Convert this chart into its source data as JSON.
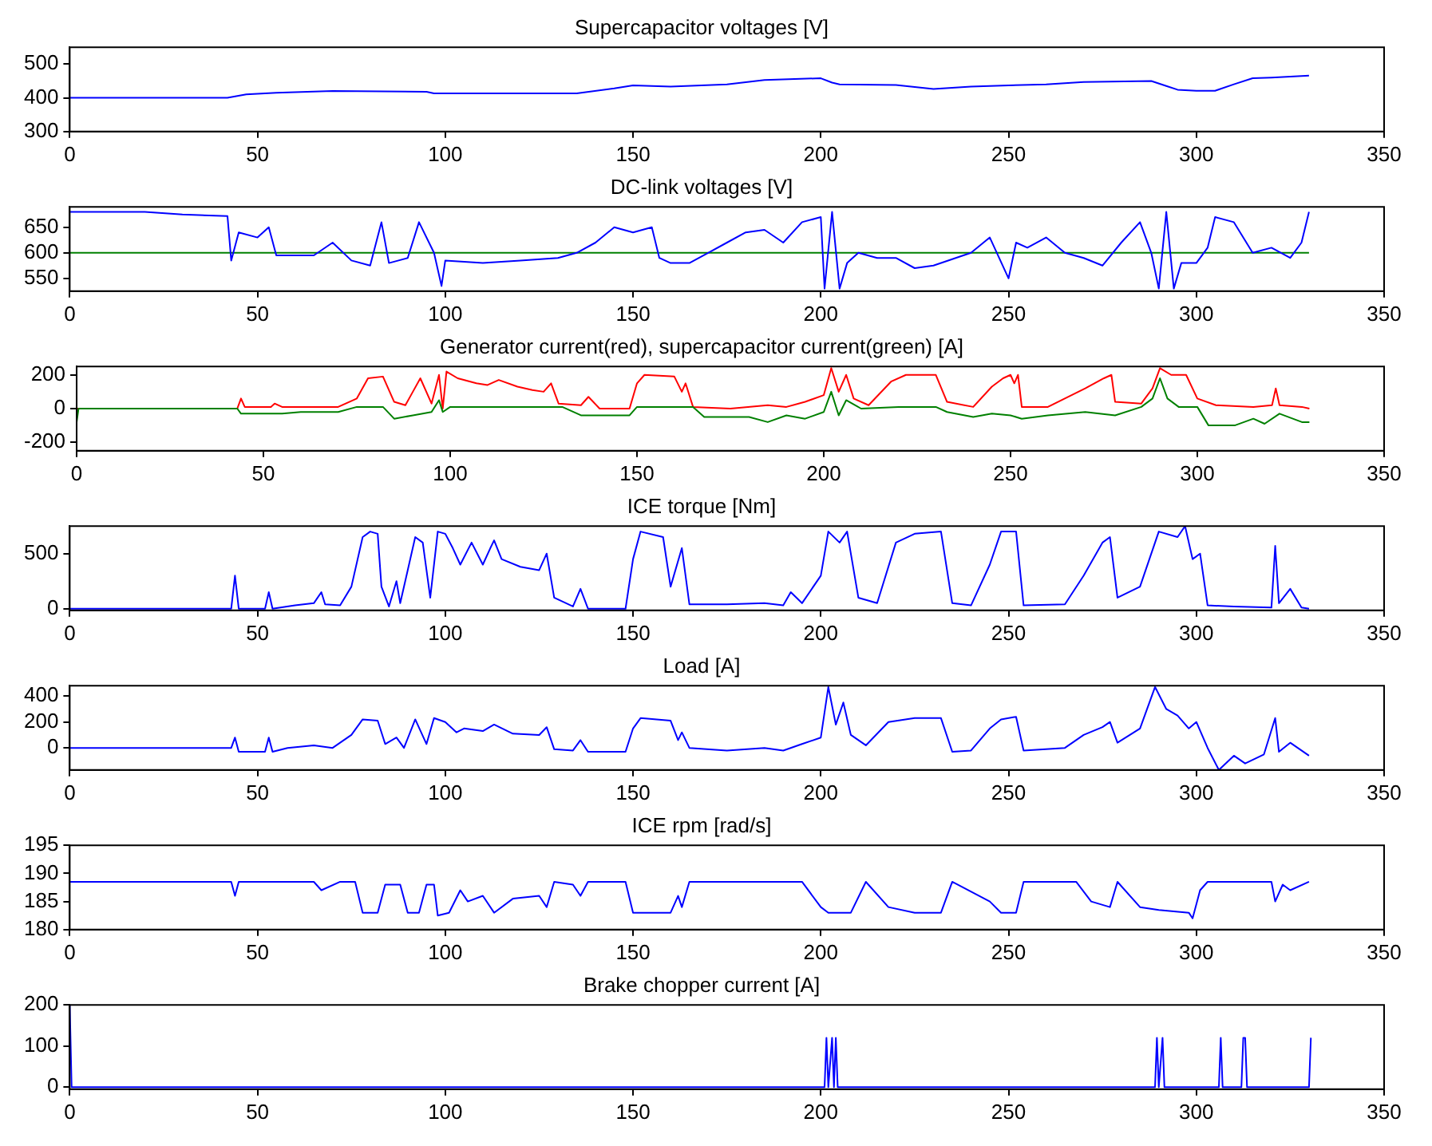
{
  "chart_data": [
    {
      "type": "line",
      "title": "Supercapacitor voltages [V]",
      "xlim": [
        0,
        350
      ],
      "xticks": [
        0,
        50,
        100,
        150,
        200,
        250,
        300,
        350
      ],
      "ylim": [
        300,
        550
      ],
      "yticks": [
        300,
        400,
        500
      ],
      "series": [
        {
          "color": "#0000ff",
          "x": [
            0,
            42,
            47,
            55,
            70,
            95,
            97,
            135,
            145,
            150,
            160,
            175,
            185,
            200,
            203,
            205,
            220,
            230,
            240,
            250,
            260,
            270,
            288,
            292,
            295,
            300,
            305,
            310,
            315,
            320,
            330
          ],
          "values": [
            400,
            400,
            410,
            415,
            420,
            418,
            413,
            413,
            428,
            437,
            433,
            440,
            453,
            458,
            445,
            440,
            438,
            426,
            433,
            437,
            440,
            447,
            450,
            435,
            424,
            421,
            421,
            440,
            458,
            460,
            466
          ]
        }
      ]
    },
    {
      "type": "line",
      "title": "DC-link voltages [V]",
      "xlim": [
        0,
        350
      ],
      "xticks": [
        0,
        50,
        100,
        150,
        200,
        250,
        300,
        350
      ],
      "ylim": [
        525,
        690
      ],
      "yticks": [
        550,
        600,
        650
      ],
      "series": [
        {
          "color": "#0000ff",
          "x": [
            0,
            20,
            30,
            42,
            43,
            45,
            50,
            53,
            55,
            65,
            70,
            75,
            80,
            83,
            85,
            90,
            93,
            97,
            99,
            100,
            110,
            120,
            130,
            135,
            140,
            145,
            150,
            155,
            157,
            160,
            165,
            170,
            175,
            180,
            185,
            190,
            195,
            200,
            201,
            203,
            205,
            207,
            210,
            215,
            220,
            225,
            230,
            240,
            245,
            250,
            252,
            255,
            260,
            265,
            270,
            275,
            280,
            285,
            288,
            290,
            292,
            294,
            296,
            300,
            303,
            305,
            310,
            315,
            320,
            325,
            328,
            330
          ],
          "values": [
            680,
            680,
            675,
            672,
            585,
            640,
            630,
            650,
            595,
            595,
            620,
            585,
            575,
            660,
            580,
            590,
            660,
            600,
            535,
            585,
            580,
            585,
            590,
            600,
            620,
            650,
            640,
            650,
            590,
            580,
            580,
            600,
            620,
            640,
            645,
            620,
            660,
            670,
            530,
            680,
            530,
            580,
            600,
            590,
            590,
            570,
            575,
            600,
            630,
            550,
            620,
            610,
            630,
            600,
            590,
            575,
            620,
            660,
            600,
            530,
            680,
            530,
            580,
            580,
            610,
            670,
            660,
            600,
            610,
            590,
            620,
            680
          ]
        },
        {
          "color": "#008000",
          "x": [
            0,
            330
          ],
          "values": [
            600,
            600
          ]
        }
      ]
    },
    {
      "type": "line",
      "title": "Generator current(red), supercapacitor current(green) [A]",
      "xlim": [
        0,
        350
      ],
      "xticks": [
        0,
        50,
        100,
        150,
        200,
        250,
        300,
        350
      ],
      "ylim": [
        -250,
        250
      ],
      "yticks": [
        -200,
        0,
        200
      ],
      "series": [
        {
          "color": "#008000",
          "x": [
            0,
            0.5,
            43,
            44,
            55,
            60,
            70,
            75,
            82,
            85,
            90,
            95,
            97,
            98,
            100,
            130,
            135,
            140,
            148,
            150,
            165,
            168,
            180,
            185,
            190,
            195,
            200,
            202,
            204,
            206,
            210,
            220,
            230,
            233,
            240,
            245,
            250,
            253,
            260,
            270,
            278,
            285,
            288,
            290,
            292,
            295,
            300,
            303,
            310,
            315,
            318,
            322,
            328,
            330
          ],
          "values": [
            -80,
            0,
            0,
            -30,
            -30,
            -20,
            -20,
            10,
            10,
            -60,
            -40,
            -20,
            50,
            -20,
            10,
            10,
            -40,
            -40,
            -40,
            10,
            10,
            -50,
            -50,
            -80,
            -40,
            -60,
            -20,
            100,
            -40,
            50,
            0,
            10,
            10,
            -20,
            -50,
            -30,
            -40,
            -60,
            -40,
            -20,
            -40,
            10,
            60,
            180,
            60,
            10,
            10,
            -100,
            -100,
            -60,
            -90,
            -30,
            -80,
            -80
          ]
        },
        {
          "color": "#ff0000",
          "x": [
            0,
            43,
            44,
            45,
            52,
            53,
            55,
            60,
            70,
            75,
            78,
            82,
            85,
            88,
            90,
            92,
            95,
            97,
            98,
            99,
            102,
            107,
            110,
            113,
            118,
            122,
            125,
            127,
            129,
            135,
            137,
            140,
            148,
            150,
            152,
            160,
            162,
            163,
            165,
            175,
            185,
            190,
            195,
            200,
            202,
            204,
            206,
            208,
            212,
            218,
            222,
            230,
            233,
            240,
            245,
            248,
            250,
            251,
            252,
            253,
            260,
            270,
            275,
            277,
            278,
            285,
            288,
            290,
            293,
            297,
            300,
            305,
            315,
            320,
            321,
            322,
            328,
            330
          ],
          "values": [
            0,
            0,
            60,
            10,
            10,
            30,
            10,
            10,
            10,
            60,
            180,
            190,
            40,
            20,
            100,
            180,
            30,
            200,
            0,
            220,
            180,
            150,
            140,
            170,
            130,
            110,
            100,
            150,
            30,
            20,
            70,
            0,
            0,
            150,
            200,
            190,
            100,
            150,
            10,
            0,
            20,
            10,
            40,
            80,
            240,
            100,
            200,
            60,
            20,
            160,
            200,
            200,
            40,
            10,
            130,
            180,
            200,
            150,
            200,
            10,
            10,
            120,
            180,
            200,
            40,
            30,
            120,
            240,
            200,
            200,
            60,
            20,
            10,
            20,
            120,
            20,
            10,
            0
          ]
        }
      ]
    },
    {
      "type": "line",
      "title": "ICE torque [Nm]",
      "xlim": [
        0,
        350
      ],
      "xticks": [
        0,
        50,
        100,
        150,
        200,
        250,
        300,
        350
      ],
      "ylim": [
        -15,
        750
      ],
      "yticks": [
        0,
        500
      ],
      "series": [
        {
          "color": "#0000ff",
          "x": [
            0,
            43,
            44,
            45,
            52,
            53,
            54,
            60,
            65,
            67,
            68,
            72,
            75,
            78,
            80,
            82,
            83,
            85,
            87,
            88,
            90,
            92,
            94,
            96,
            98,
            100,
            102,
            104,
            107,
            110,
            112,
            113,
            115,
            120,
            125,
            127,
            129,
            134,
            136,
            138,
            148,
            150,
            152,
            158,
            160,
            163,
            165,
            175,
            185,
            190,
            192,
            195,
            200,
            202,
            205,
            207,
            210,
            215,
            220,
            225,
            232,
            235,
            240,
            245,
            248,
            252,
            254,
            265,
            270,
            275,
            277,
            279,
            285,
            290,
            295,
            297,
            299,
            301,
            303,
            310,
            320,
            321,
            322,
            325,
            328,
            330
          ],
          "values": [
            0,
            0,
            300,
            0,
            0,
            150,
            0,
            30,
            50,
            150,
            40,
            30,
            200,
            650,
            700,
            680,
            200,
            20,
            250,
            50,
            350,
            650,
            600,
            100,
            700,
            680,
            550,
            400,
            600,
            400,
            550,
            620,
            450,
            380,
            350,
            500,
            100,
            20,
            180,
            0,
            0,
            450,
            700,
            650,
            200,
            550,
            40,
            40,
            50,
            30,
            150,
            50,
            300,
            700,
            600,
            700,
            100,
            50,
            600,
            680,
            700,
            50,
            30,
            400,
            700,
            700,
            30,
            40,
            300,
            600,
            650,
            100,
            200,
            700,
            650,
            750,
            450,
            500,
            30,
            20,
            10,
            570,
            50,
            180,
            10,
            0
          ]
        }
      ]
    },
    {
      "type": "line",
      "title": "Load [A]",
      "xlim": [
        0,
        350
      ],
      "xticks": [
        0,
        50,
        100,
        150,
        200,
        250,
        300,
        350
      ],
      "ylim": [
        -170,
        480
      ],
      "yticks": [
        0,
        200,
        400
      ],
      "series": [
        {
          "color": "#0000ff",
          "x": [
            0,
            43,
            44,
            45,
            52,
            53,
            54,
            58,
            65,
            70,
            75,
            78,
            82,
            84,
            87,
            89,
            92,
            95,
            97,
            100,
            103,
            105,
            110,
            113,
            118,
            125,
            127,
            129,
            134,
            136,
            138,
            148,
            150,
            152,
            160,
            162,
            163,
            165,
            175,
            185,
            190,
            195,
            200,
            202,
            204,
            206,
            208,
            212,
            218,
            225,
            232,
            235,
            240,
            245,
            248,
            252,
            254,
            265,
            270,
            275,
            277,
            279,
            285,
            289,
            292,
            295,
            298,
            300,
            303,
            306,
            310,
            313,
            318,
            321,
            322,
            325,
            330
          ],
          "values": [
            0,
            0,
            80,
            -30,
            -30,
            80,
            -30,
            0,
            20,
            0,
            100,
            220,
            210,
            30,
            80,
            0,
            220,
            30,
            230,
            200,
            120,
            150,
            130,
            180,
            110,
            100,
            160,
            -10,
            -20,
            60,
            -30,
            -30,
            150,
            230,
            210,
            60,
            120,
            0,
            -20,
            0,
            -20,
            30,
            80,
            470,
            180,
            350,
            100,
            20,
            200,
            230,
            230,
            -30,
            -20,
            150,
            220,
            240,
            -20,
            0,
            100,
            160,
            200,
            40,
            150,
            470,
            300,
            250,
            150,
            200,
            0,
            -170,
            -60,
            -120,
            -50,
            230,
            -30,
            40,
            -60
          ]
        }
      ]
    },
    {
      "type": "line",
      "title": "ICE rpm [rad/s]",
      "xlim": [
        0,
        350
      ],
      "xticks": [
        0,
        50,
        100,
        150,
        200,
        250,
        300,
        350
      ],
      "ylim": [
        180,
        195
      ],
      "yticks": [
        180,
        185,
        190,
        195
      ],
      "series": [
        {
          "color": "#0000ff",
          "x": [
            0,
            43,
            44,
            45,
            65,
            67,
            72,
            76,
            78,
            82,
            84,
            88,
            90,
            93,
            95,
            97,
            98,
            101,
            104,
            106,
            110,
            113,
            118,
            125,
            127,
            129,
            134,
            136,
            138,
            148,
            150,
            160,
            162,
            163,
            165,
            195,
            200,
            202,
            208,
            212,
            218,
            225,
            232,
            235,
            245,
            248,
            252,
            254,
            268,
            272,
            277,
            279,
            285,
            290,
            298,
            299,
            301,
            303,
            320,
            321,
            323,
            325,
            330
          ],
          "values": [
            188.5,
            188.5,
            186,
            188.5,
            188.5,
            187,
            188.5,
            188.5,
            183,
            183,
            188,
            188,
            183,
            183,
            188,
            188,
            182.5,
            183,
            187,
            185,
            186,
            183,
            185.5,
            186,
            184,
            188.5,
            188,
            186,
            188.5,
            188.5,
            183,
            183,
            186,
            184,
            188.5,
            188.5,
            184,
            183,
            183,
            188.5,
            184,
            183,
            183,
            188.5,
            185,
            183,
            183,
            188.5,
            188.5,
            185,
            184,
            188.5,
            184,
            183.5,
            183,
            182,
            187,
            188.5,
            188.5,
            185,
            188,
            187,
            188.5
          ]
        }
      ]
    },
    {
      "type": "line",
      "title": "Brake chopper current [A]",
      "xlim": [
        0,
        350
      ],
      "xticks": [
        0,
        50,
        100,
        150,
        200,
        250,
        300,
        350
      ],
      "ylim": [
        -5,
        200
      ],
      "yticks": [
        0,
        100,
        200
      ],
      "series": [
        {
          "color": "#0000ff",
          "x": [
            0,
            0.5,
            201,
            201.5,
            202,
            203,
            203.5,
            204,
            204.5,
            289,
            289.5,
            290,
            291,
            291.5,
            306,
            306.5,
            307,
            312,
            312.5,
            313,
            313.5,
            330,
            330.5
          ],
          "values": [
            200,
            0,
            0,
            120,
            0,
            120,
            0,
            120,
            0,
            0,
            120,
            0,
            120,
            0,
            0,
            120,
            0,
            0,
            120,
            120,
            0,
            0,
            120
          ]
        }
      ]
    }
  ]
}
